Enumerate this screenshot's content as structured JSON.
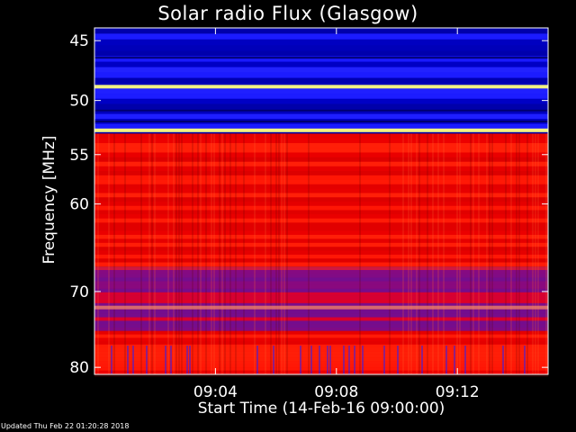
{
  "chart_data": {
    "type": "heatmap",
    "title": "Solar radio Flux (Glasgow)",
    "ylabel": "Frequency [MHz]",
    "xlabel": "Start Time (14-Feb-16 09:00:00)",
    "y_axis": {
      "range": [
        44,
        81
      ],
      "ticks": [
        45,
        50,
        55,
        60,
        70,
        80
      ],
      "scale": "logarithmic"
    },
    "x_axis": {
      "range_minutes": [
        0,
        15
      ],
      "tick_minutes": [
        4,
        8,
        12
      ],
      "tick_labels": [
        "09:04",
        "09:08",
        "09:12"
      ]
    },
    "colormap": [
      "#000064",
      "#0000ff",
      "#ff0000",
      "#ffff80"
    ],
    "frequency_bands": [
      {
        "from_mhz": 44,
        "to_mhz": 53,
        "level": "low"
      },
      {
        "from_mhz": 53,
        "to_mhz": 67,
        "level": "high"
      },
      {
        "from_mhz": 67,
        "to_mhz": 75,
        "level": "medium"
      },
      {
        "from_mhz": 75,
        "to_mhz": 81,
        "level": "high"
      }
    ],
    "bright_lines_mhz": [
      48.8,
      52.7,
      72
    ]
  },
  "footer": {
    "updated": "Updated Thu Feb 22 01:20:28 2018"
  }
}
